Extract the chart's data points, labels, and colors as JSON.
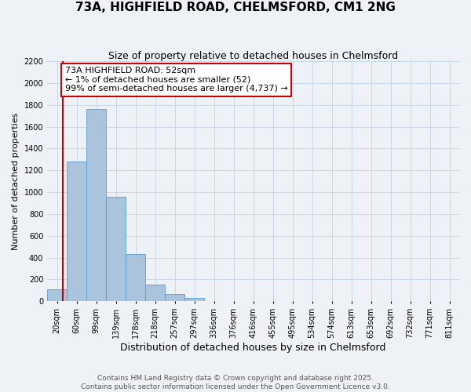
{
  "title": "73A, HIGHFIELD ROAD, CHELMSFORD, CM1 2NG",
  "subtitle": "Size of property relative to detached houses in Chelmsford",
  "xlabel": "Distribution of detached houses by size in Chelmsford",
  "ylabel": "Number of detached properties",
  "bar_values": [
    110,
    1280,
    1760,
    960,
    430,
    150,
    70,
    30,
    0,
    0,
    0,
    0,
    0,
    0,
    0,
    0,
    0,
    0,
    0,
    0,
    0
  ],
  "bar_labels": [
    "20sqm",
    "60sqm",
    "99sqm",
    "139sqm",
    "178sqm",
    "218sqm",
    "257sqm",
    "297sqm",
    "336sqm",
    "376sqm",
    "416sqm",
    "455sqm",
    "495sqm",
    "534sqm",
    "574sqm",
    "613sqm",
    "653sqm",
    "692sqm",
    "732sqm",
    "771sqm",
    "811sqm"
  ],
  "bar_color": "#aac4de",
  "bar_edge_color": "#5b9bd5",
  "annotation_line1": "73A HIGHFIELD ROAD: 52sqm",
  "annotation_line2": "← 1% of detached houses are smaller (52)",
  "annotation_line3": "99% of semi-detached houses are larger (4,737) →",
  "annotation_box_color": "#ffffff",
  "annotation_box_edge_color": "#cc0000",
  "vline_color": "#cc0000",
  "ylim": [
    0,
    2200
  ],
  "yticks": [
    0,
    200,
    400,
    600,
    800,
    1000,
    1200,
    1400,
    1600,
    1800,
    2000,
    2200
  ],
  "grid_color": "#c8d8e8",
  "background_color": "#eef2f7",
  "footer_line1": "Contains HM Land Registry data © Crown copyright and database right 2025.",
  "footer_line2": "Contains public sector information licensed under the Open Government Licence v3.0.",
  "title_fontsize": 11,
  "subtitle_fontsize": 9,
  "xlabel_fontsize": 9,
  "ylabel_fontsize": 8,
  "tick_fontsize": 7,
  "annotation_fontsize": 8,
  "footer_fontsize": 6.5
}
